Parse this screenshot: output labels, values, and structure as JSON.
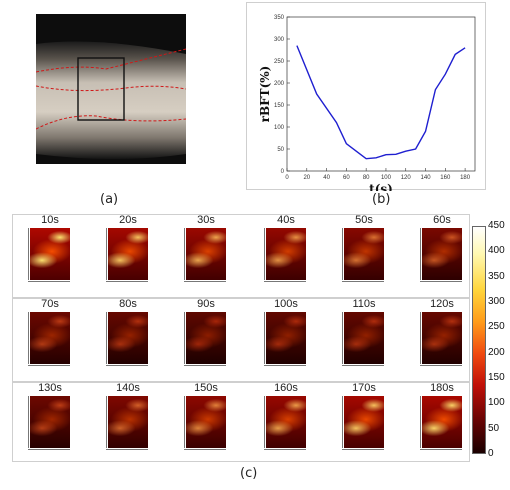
{
  "labels": {
    "a": "(a)",
    "b": "(b)",
    "c": "(c)"
  },
  "photo": {
    "description": "arm-skin-photo"
  },
  "chart_data": {
    "type": "line",
    "xlabel": "t(s)",
    "ylabel": "rBFT(%)",
    "xlim": [
      0,
      190
    ],
    "ylim": [
      0,
      350
    ],
    "xticks": [
      0,
      20,
      40,
      60,
      80,
      100,
      120,
      140,
      160,
      180
    ],
    "yticks": [
      0,
      50,
      100,
      150,
      200,
      250,
      300,
      350
    ],
    "x": [
      10,
      30,
      50,
      60,
      70,
      80,
      90,
      100,
      110,
      120,
      130,
      140,
      150,
      160,
      170,
      180
    ],
    "y": [
      285,
      175,
      110,
      62,
      45,
      28,
      30,
      37,
      38,
      45,
      50,
      90,
      185,
      220,
      265,
      280
    ],
    "line_color": "#1f1fd0"
  },
  "maps": [
    {
      "t": "10s",
      "level": 0.95
    },
    {
      "t": "20s",
      "level": 0.85
    },
    {
      "t": "30s",
      "level": 0.75
    },
    {
      "t": "40s",
      "level": 0.68
    },
    {
      "t": "50s",
      "level": 0.55
    },
    {
      "t": "60s",
      "level": 0.42
    },
    {
      "t": "70s",
      "level": 0.28
    },
    {
      "t": "80s",
      "level": 0.22
    },
    {
      "t": "90s",
      "level": 0.15
    },
    {
      "t": "100s",
      "level": 0.18
    },
    {
      "t": "110s",
      "level": 0.2
    },
    {
      "t": "120s",
      "level": 0.22
    },
    {
      "t": "130s",
      "level": 0.3
    },
    {
      "t": "140s",
      "level": 0.48
    },
    {
      "t": "150s",
      "level": 0.62
    },
    {
      "t": "160s",
      "level": 0.72
    },
    {
      "t": "170s",
      "level": 0.85
    },
    {
      "t": "180s",
      "level": 0.9
    }
  ],
  "colorbar": {
    "ticks": [
      "450",
      "400",
      "350",
      "300",
      "250",
      "200",
      "150",
      "100",
      "50",
      "0"
    ]
  }
}
